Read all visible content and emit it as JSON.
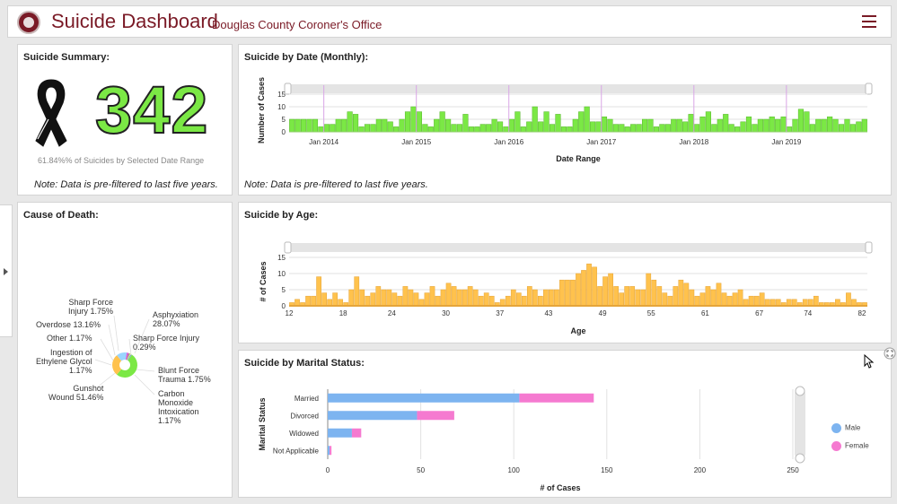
{
  "header": {
    "title": "Suicide Dashboard",
    "subtitle": "Douglas County Coroner's Office"
  },
  "summary": {
    "title": "Suicide Summary:",
    "count": "342",
    "percent_text": "61.84%% of Suicides by Selected Date Range",
    "note": "Note: Data is pre-filtered to last five years."
  },
  "by_date": {
    "title": "Suicide by Date (Monthly):",
    "note": "Note: Data is pre-filtered to last five years."
  },
  "cause": {
    "title": "Cause of Death:",
    "labels": [
      {
        "text": "Sharp Force\nInjury 1.75%"
      },
      {
        "text": "Overdose 13.16%"
      },
      {
        "text": "Other 1.17%"
      },
      {
        "text": "Ingestion of\nEthylene Glycol\n1.17%"
      },
      {
        "text": "Gunshot\nWound 51.46%"
      },
      {
        "text": "Asphyxiation\n28.07%"
      },
      {
        "text": "Sharp Force Injury\n0.29%"
      },
      {
        "text": "Blunt Force\nTrauma 1.75%"
      },
      {
        "text": "Carbon\nMonoxide\nIntoxication\n1.17%"
      }
    ]
  },
  "by_age": {
    "title": "Suicide by Age:"
  },
  "marital": {
    "title": "Suicide by Marital Status:"
  },
  "colors": {
    "brand": "#7a1a26",
    "date_bar": "#7be845",
    "age_bar": "#ffc24d",
    "male": "#7db4f0",
    "female": "#f57ad0"
  },
  "chart_data": [
    {
      "type": "bar",
      "title": "Suicide by Date (Monthly)",
      "xlabel": "Date Range",
      "ylabel": "Number of Cases",
      "ylim": [
        0,
        15
      ],
      "yticks": [
        0,
        5,
        10,
        15
      ],
      "tick_labels": [
        "Jan 2014",
        "Jan 2015",
        "Jan 2016",
        "Jan 2017",
        "Jan 2018",
        "Jan 2019"
      ],
      "values": [
        5,
        5,
        5,
        5,
        5,
        2,
        3,
        3,
        5,
        5,
        8,
        7,
        2,
        3,
        3,
        5,
        5,
        4,
        2,
        5,
        8,
        10,
        8,
        3,
        2,
        5,
        8,
        5,
        3,
        3,
        7,
        2,
        2,
        3,
        3,
        5,
        4,
        2,
        5,
        8,
        2,
        4,
        10,
        4,
        8,
        3,
        7,
        2,
        2,
        5,
        8,
        10,
        4,
        4,
        6,
        5,
        3,
        3,
        2,
        3,
        3,
        5,
        5,
        2,
        3,
        3,
        5,
        5,
        4,
        7,
        3,
        6,
        8,
        3,
        5,
        7,
        3,
        2,
        4,
        6,
        3,
        5,
        5,
        6,
        5,
        6,
        2,
        5,
        9,
        8,
        3,
        5,
        5,
        6,
        5,
        3,
        5,
        3,
        4,
        5
      ]
    },
    {
      "type": "bar",
      "title": "Suicide by Age",
      "xlabel": "Age",
      "ylabel": "# of Cases",
      "ylim": [
        0,
        15
      ],
      "yticks": [
        0,
        5,
        10,
        15
      ],
      "tick_labels": [
        "12",
        "18",
        "24",
        "30",
        "37",
        "43",
        "49",
        "55",
        "61",
        "67",
        "74",
        "82"
      ],
      "x_start": 12,
      "values": [
        1,
        2,
        1,
        3,
        3,
        9,
        4,
        2,
        4,
        2,
        1,
        5,
        9,
        5,
        3,
        4,
        6,
        5,
        5,
        4,
        3,
        6,
        5,
        4,
        2,
        4,
        6,
        3,
        5,
        7,
        6,
        5,
        5,
        6,
        5,
        3,
        4,
        3,
        1,
        2,
        3,
        5,
        4,
        3,
        6,
        5,
        3,
        5,
        5,
        5,
        8,
        8,
        8,
        10,
        11,
        13,
        12,
        6,
        9,
        10,
        6,
        4,
        6,
        6,
        5,
        5,
        10,
        8,
        6,
        4,
        3,
        6,
        8,
        7,
        5,
        3,
        4,
        6,
        5,
        7,
        4,
        3,
        4,
        5,
        2,
        3,
        3,
        4,
        2,
        2,
        2,
        1,
        2,
        2,
        1,
        2,
        2,
        3,
        1,
        1,
        1,
        2,
        1,
        4,
        2,
        1,
        1
      ]
    },
    {
      "type": "bar",
      "orientation": "horizontal",
      "stacked": true,
      "title": "Suicide by Marital Status",
      "xlabel": "# of Cases",
      "ylabel": "Marital Status",
      "xlim": [
        0,
        250
      ],
      "xticks": [
        0,
        50,
        100,
        150,
        200,
        250
      ],
      "categories": [
        "Married",
        "Divorced",
        "Widowed",
        "Not Applicable"
      ],
      "series": [
        {
          "name": "Male",
          "values": [
            103,
            48,
            13,
            1
          ]
        },
        {
          "name": "Female",
          "values": [
            40,
            20,
            5,
            1
          ]
        }
      ],
      "segment_values": [
        103,
        40,
        48,
        20,
        13,
        5,
        1,
        1
      ]
    },
    {
      "type": "pie",
      "title": "Cause of Death",
      "categories": [
        "Gunshot Wound",
        "Asphyxiation",
        "Overdose",
        "Sharp Force Injury",
        "Blunt Force Trauma",
        "Other",
        "Ingestion of Ethylene Glycol",
        "Carbon Monoxide Intoxication",
        "Sharp Force Injury"
      ],
      "values": [
        51.46,
        28.07,
        13.16,
        1.75,
        1.75,
        1.17,
        1.17,
        1.17,
        0.29
      ],
      "colors": [
        "#7be845",
        "#ffc24d",
        "#9ad5ff",
        "#c86de8",
        "#e04ea8",
        "#66cc88",
        "#f7e06b",
        "#4aa8e0",
        "#a0a0a0"
      ]
    }
  ]
}
